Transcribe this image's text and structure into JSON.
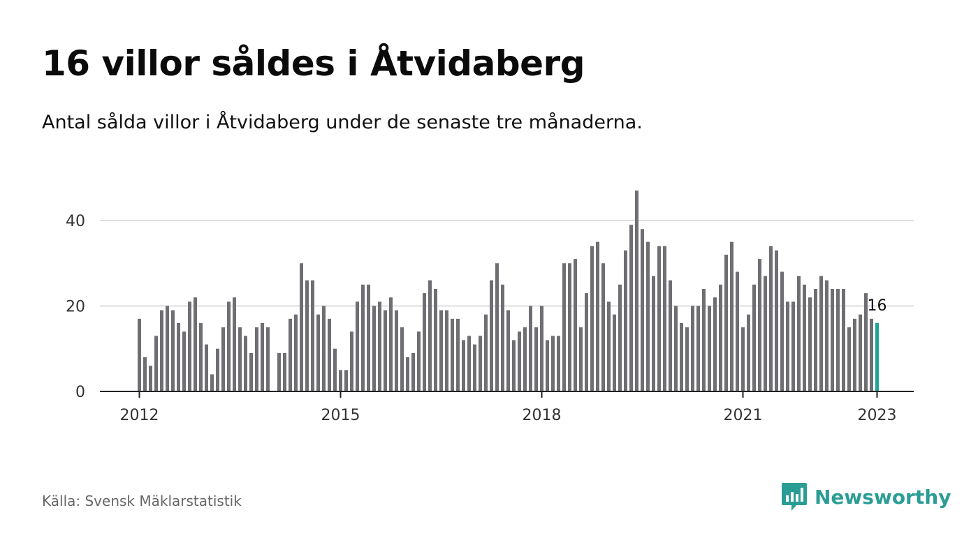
{
  "title": "16 villor såldes i Åtvidaberg",
  "subtitle": "Antal sålda villor i Åtvidaberg under de senaste tre månaderna.",
  "source": "Källa: Svensk Mäklarstatistik",
  "brand": {
    "name": "Newsworthy",
    "icon": "newsworthy-logo-icon",
    "color": "#2a9d95"
  },
  "colors": {
    "bar": "#6e6e73",
    "highlight": "#1fa39a",
    "grid": "#dddddd",
    "axis": "#222222"
  },
  "chart_data": {
    "type": "bar",
    "ylim": [
      0,
      48
    ],
    "grid": true,
    "y_ticks": [
      0,
      20,
      40
    ],
    "x_ticks": [
      {
        "label": "2012",
        "index": 0
      },
      {
        "label": "2015",
        "index": 36
      },
      {
        "label": "2018",
        "index": 72
      },
      {
        "label": "2021",
        "index": 108
      },
      {
        "label": "2023",
        "index": 132
      }
    ],
    "start_month": "2012-01",
    "values": [
      17,
      8,
      6,
      13,
      19,
      20,
      19,
      16,
      14,
      21,
      22,
      16,
      11,
      4,
      10,
      15,
      21,
      22,
      15,
      13,
      9,
      15,
      16,
      15,
      null,
      9,
      9,
      17,
      18,
      30,
      26,
      26,
      18,
      20,
      17,
      10,
      5,
      5,
      14,
      21,
      25,
      25,
      20,
      21,
      19,
      22,
      19,
      15,
      8,
      9,
      14,
      23,
      26,
      24,
      19,
      19,
      17,
      17,
      12,
      13,
      11,
      13,
      18,
      26,
      30,
      25,
      19,
      12,
      14,
      15,
      20,
      15,
      20,
      12,
      13,
      13,
      30,
      30,
      31,
      15,
      23,
      34,
      35,
      30,
      21,
      18,
      25,
      33,
      39,
      47,
      38,
      35,
      27,
      34,
      34,
      26,
      20,
      16,
      15,
      20,
      20,
      24,
      20,
      22,
      25,
      32,
      35,
      28,
      15,
      18,
      25,
      31,
      27,
      34,
      33,
      28,
      21,
      21,
      27,
      25,
      22,
      24,
      27,
      26,
      24,
      24,
      24,
      15,
      17,
      18,
      23,
      17,
      16
    ],
    "highlight_label": "16"
  }
}
